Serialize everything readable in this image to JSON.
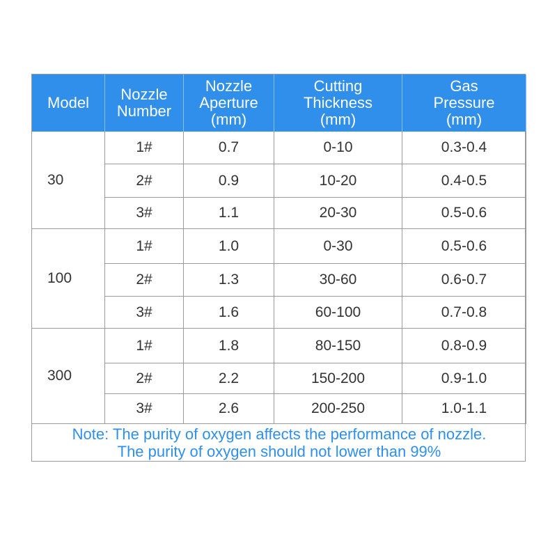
{
  "table": {
    "header": [
      [
        "Model"
      ],
      [
        "Nozzle",
        "Number"
      ],
      [
        "Nozzle",
        "Aperture",
        "(mm)"
      ],
      [
        "Cutting",
        "Thickness",
        "(mm)"
      ],
      [
        "Gas",
        "Pressure",
        "(mm)"
      ]
    ],
    "groups": [
      {
        "model": "30",
        "rows": [
          [
            "1#",
            "0.7",
            "0-10",
            "0.3-0.4"
          ],
          [
            "2#",
            "0.9",
            "10-20",
            "0.4-0.5"
          ],
          [
            "3#",
            "1.1",
            "20-30",
            "0.5-0.6"
          ]
        ]
      },
      {
        "model": "100",
        "rows": [
          [
            "1#",
            "1.0",
            "0-30",
            "0.5-0.6"
          ],
          [
            "2#",
            "1.3",
            "30-60",
            "0.6-0.7"
          ],
          [
            "3#",
            "1.6",
            "60-100",
            "0.7-0.8"
          ]
        ]
      },
      {
        "model": "300",
        "rows": [
          [
            "1#",
            "1.8",
            "80-150",
            "0.8-0.9"
          ],
          [
            "2#",
            "2.2",
            "150-200",
            "0.9-1.0"
          ],
          [
            "3#",
            "2.6",
            "200-250",
            "1.0-1.1"
          ]
        ]
      }
    ],
    "note": [
      "Note: The purity of oxygen affects the performance of nozzle.",
      "The purity of oxygen should not lower than 99%"
    ]
  }
}
